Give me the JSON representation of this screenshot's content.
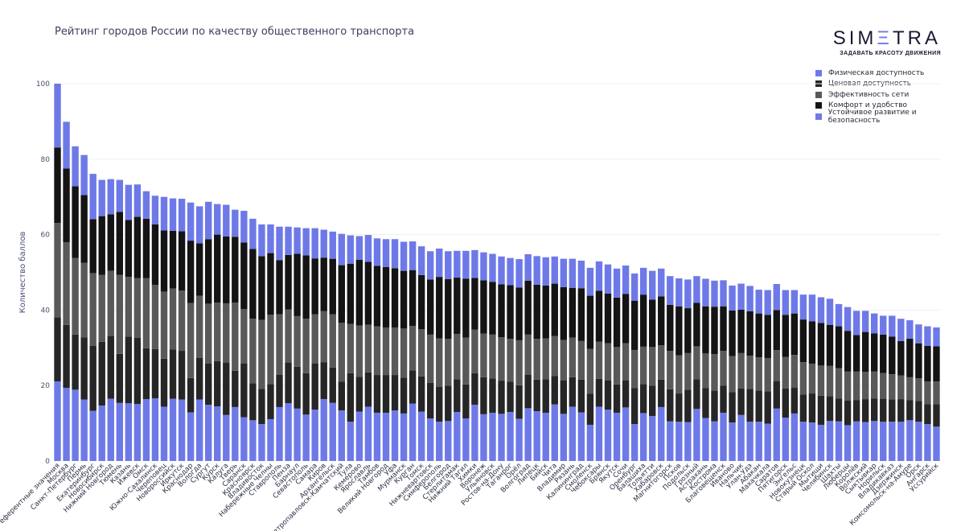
{
  "chart_data": {
    "type": "bar",
    "stacked": true,
    "title": "Рейтинг городов России по качеству общественного транспорта",
    "xlabel": "",
    "ylabel": "Количество баллов",
    "ylim": [
      0,
      100
    ],
    "yticks": [
      0,
      20,
      40,
      60,
      80,
      100
    ],
    "grid": true,
    "legend_position": "top-right",
    "categories": [
      "Референтные значения",
      "Москва",
      "Санкт-Петербург",
      "Пермь",
      "Екатеринбург",
      "Новосибирск",
      "Нижний Новгород",
      "Тюмень",
      "Казань",
      "Ижевск",
      "Омск",
      "Южно-Сахалинск",
      "Череповец",
      "Новороссийск",
      "Иркутск",
      "Краснодар",
      "Вологда",
      "Сургут",
      "Курск",
      "Калуга",
      "Тверь",
      "Саранск",
      "Красноярск",
      "Владивосток",
      "Набережные Челны",
      "Ставрополь",
      "Пенза",
      "Барнаул",
      "Севастополь",
      "Самара",
      "Киров",
      "Архангельск",
      "Петропавловск-Камчатский",
      "Тула",
      "Кемерово",
      "Ярославль",
      "Тамбов",
      "Великий Новгород",
      "Уфа",
      "Мурманск",
      "Курган",
      "Томск",
      "Нижневартовск",
      "Симферополь",
      "Белгород",
      "Стерлитамак",
      "Нижний Тагил",
      "Химки",
      "Воронеж",
      "Ульяновск",
      "Ростов-на-Дону",
      "Таганрог",
      "Орёл",
      "Волгоград",
      "Липецк",
      "Бийск",
      "Чита",
      "Владимир",
      "Рязань",
      "Калининград",
      "Смоленск",
      "Чебоксары",
      "Брянск",
      "Якутск",
      "Сочи",
      "Оренбург",
      "Балашиха",
      "Тольятти",
      "Хабаровск",
      "Магнитогорск",
      "Псков",
      "Подольск",
      "Грозный",
      "Астрахань",
      "Кострома",
      "Благовещенск",
      "Иваново",
      "Нальчик",
      "Улан-Удэ",
      "Абакан",
      "Махачкала",
      "Саратов",
      "Пятигорск",
      "Энгельс",
      "Новокузнецк",
      "Старый Оскол",
      "Мытищи",
      "Челябинск",
      "Шахты",
      "Люберцы",
      "Королёв",
      "Волжский",
      "Сыктывкар",
      "Норильск",
      "Владикавказ",
      "Дзержинск",
      "Комсомольск-на-Амуре",
      "Орск",
      "Ангарск",
      "Уссурийск"
    ],
    "series": [
      {
        "name": "Физическая доступность",
        "color": "#6e79e8",
        "values": [
          21.1,
          19.4,
          18.9,
          16.3,
          13.3,
          14.7,
          16.5,
          15.4,
          15.3,
          15.1,
          16.4,
          16.6,
          14.4,
          16.5,
          16.3,
          12.9,
          16.3,
          14.9,
          14.5,
          12.2,
          14.3,
          11.6,
          10.8,
          9.8,
          11.1,
          14.3,
          15.3,
          13.9,
          12.3,
          13.6,
          16.4,
          15.4,
          13.4,
          10.4,
          13.1,
          14.4,
          12.8,
          12.8,
          13.4,
          12.6,
          15.2,
          13.1,
          11.3,
          10.4,
          10.6,
          13.0,
          11.3,
          14.9,
          12.4,
          12.8,
          12.5,
          13.0,
          11.2,
          14.0,
          13.2,
          12.8,
          15.0,
          12.5,
          14.4,
          12.9,
          9.6,
          14.4,
          13.6,
          12.8,
          14.2,
          9.8,
          12.7,
          11.9,
          14.3,
          10.5,
          10.4,
          10.3,
          13.8,
          11.4,
          10.5,
          12.8,
          10.2,
          12.2,
          10.4,
          10.4,
          9.9,
          13.9,
          11.5,
          12.6,
          10.4,
          10.2,
          9.6,
          10.6,
          10.5,
          9.5,
          10.5,
          10.3,
          10.6,
          10.4,
          10.4,
          10.4,
          10.8,
          10.4,
          9.8,
          9.1
        ]
      },
      {
        "name": "Ценовая доступность",
        "color": "#262626",
        "values": [
          17.0,
          16.7,
          14.6,
          16.5,
          17.2,
          16.9,
          16.7,
          13.0,
          17.7,
          17.6,
          13.5,
          13.1,
          12.7,
          13.1,
          12.9,
          9.1,
          11.0,
          10.9,
          12.0,
          13.9,
          9.6,
          14.2,
          9.8,
          9.3,
          9.3,
          8.6,
          10.8,
          11.1,
          11.0,
          12.2,
          9.8,
          9.4,
          7.6,
          12.9,
          9.2,
          9.1,
          10.0,
          10.0,
          9.4,
          9.5,
          8.8,
          9.3,
          9.4,
          9.3,
          9.4,
          8.7,
          9.0,
          8.4,
          9.8,
          9.1,
          8.8,
          8.0,
          8.9,
          8.9,
          8.4,
          8.9,
          7.5,
          8.9,
          7.8,
          8.7,
          8.2,
          7.4,
          7.8,
          7.5,
          7.2,
          9.5,
          7.7,
          8.1,
          7.3,
          8.5,
          7.5,
          8.6,
          7.9,
          7.9,
          8.2,
          7.2,
          8.1,
          7.0,
          8.7,
          8.3,
          8.6,
          7.3,
          7.7,
          6.8,
          7.2,
          7.7,
          7.7,
          6.6,
          6.1,
          6.5,
          5.6,
          6.1,
          6.0,
          6.1,
          5.9,
          6.0,
          5.3,
          5.5,
          5.3,
          6.0
        ]
      },
      {
        "name": "Эффективность сети",
        "color": "#595959",
        "values": [
          25.0,
          21.9,
          20.3,
          19.7,
          19.3,
          17.7,
          17.2,
          20.9,
          15.8,
          15.8,
          18.6,
          17.0,
          17.8,
          16.1,
          16.0,
          19.9,
          16.5,
          15.9,
          15.5,
          15.7,
          18.1,
          14.5,
          17.1,
          18.3,
          18.4,
          16.0,
          14.1,
          13.4,
          14.4,
          13.1,
          13.5,
          14.1,
          15.6,
          13.0,
          13.6,
          12.6,
          12.9,
          12.6,
          12.6,
          13.0,
          11.8,
          12.5,
          12.8,
          12.8,
          12.4,
          12.0,
          12.4,
          11.5,
          11.6,
          11.6,
          11.5,
          11.4,
          11.9,
          10.6,
          10.8,
          10.8,
          10.6,
          10.7,
          10.5,
          10.2,
          11.9,
          9.8,
          9.8,
          9.9,
          9.8,
          10.1,
          9.9,
          10.2,
          9.1,
          10.2,
          10.1,
          9.7,
          8.7,
          9.2,
          9.6,
          9.2,
          9.5,
          9.4,
          8.8,
          8.8,
          8.8,
          8.2,
          8.4,
          8.7,
          8.6,
          7.9,
          8.0,
          8.0,
          8.0,
          7.7,
          7.6,
          7.2,
          7.1,
          6.8,
          6.7,
          6.3,
          6.1,
          6.0,
          6.0,
          6.0
        ]
      },
      {
        "name": "Комфорт и удобство",
        "color": "#141414",
        "values": [
          20.0,
          19.5,
          19.0,
          18.0,
          14.3,
          15.6,
          15.0,
          16.7,
          15.1,
          16.2,
          15.7,
          16.0,
          16.2,
          15.3,
          15.7,
          16.5,
          13.9,
          17.1,
          18.0,
          17.7,
          17.4,
          17.6,
          18.5,
          16.9,
          16.3,
          14.3,
          14.4,
          16.5,
          16.8,
          14.8,
          14.2,
          14.7,
          15.3,
          16.0,
          17.4,
          16.7,
          16.0,
          16.0,
          15.7,
          15.3,
          14.8,
          14.4,
          14.6,
          16.3,
          15.8,
          14.9,
          15.6,
          13.7,
          14.1,
          14.0,
          14.0,
          14.2,
          14.0,
          14.3,
          14.3,
          14.0,
          13.9,
          14.0,
          13.2,
          14.0,
          14.1,
          13.5,
          13.2,
          13.1,
          13.1,
          13.1,
          13.8,
          12.6,
          12.9,
          12.2,
          13.0,
          11.9,
          11.5,
          12.5,
          12.6,
          11.8,
          12.1,
          11.5,
          11.8,
          11.6,
          11.4,
          10.6,
          11.1,
          11.0,
          11.3,
          11.2,
          11.3,
          10.9,
          11.1,
          10.8,
          9.7,
          10.6,
          10.1,
          10.2,
          10.0,
          9.1,
          10.2,
          9.3,
          9.4,
          9.3
        ]
      },
      {
        "name": "Устойчивое развитие и безопасность",
        "color": "#6e79e8",
        "values": [
          16.9,
          12.4,
          10.6,
          10.6,
          12.0,
          9.6,
          9.3,
          8.5,
          9.3,
          8.6,
          7.3,
          7.6,
          8.9,
          8.6,
          8.6,
          10.1,
          9.8,
          9.9,
          8.1,
          8.4,
          7.2,
          8.4,
          8.0,
          8.4,
          7.6,
          8.9,
          7.5,
          7.0,
          7.2,
          8.0,
          7.4,
          7.2,
          8.3,
          7.5,
          6.3,
          7.1,
          7.3,
          7.4,
          7.7,
          7.7,
          7.6,
          7.6,
          7.5,
          7.5,
          7.4,
          7.1,
          7.4,
          7.4,
          7.4,
          7.4,
          7.4,
          7.2,
          7.5,
          7.0,
          7.6,
          7.5,
          7.2,
          7.5,
          7.7,
          7.3,
          7.4,
          7.8,
          7.7,
          7.7,
          7.5,
          7.2,
          7.1,
          7.6,
          7.4,
          7.6,
          7.4,
          7.6,
          7.1,
          7.3,
          6.9,
          6.9,
          6.6,
          6.9,
          6.7,
          6.3,
          6.6,
          6.9,
          6.6,
          6.2,
          6.6,
          7.1,
          6.8,
          6.9,
          5.9,
          6.3,
          6.4,
          5.6,
          5.3,
          5.0,
          5.5,
          5.9,
          4.9,
          5.0,
          5.2,
          5.0
        ]
      }
    ]
  },
  "logo": {
    "word_start": "SIM",
    "word_mid": "Ξ",
    "word_end": "TRA",
    "tagline": "ЗАДАВАТЬ КРАСОТУ ДВИЖЕНИЯ"
  }
}
